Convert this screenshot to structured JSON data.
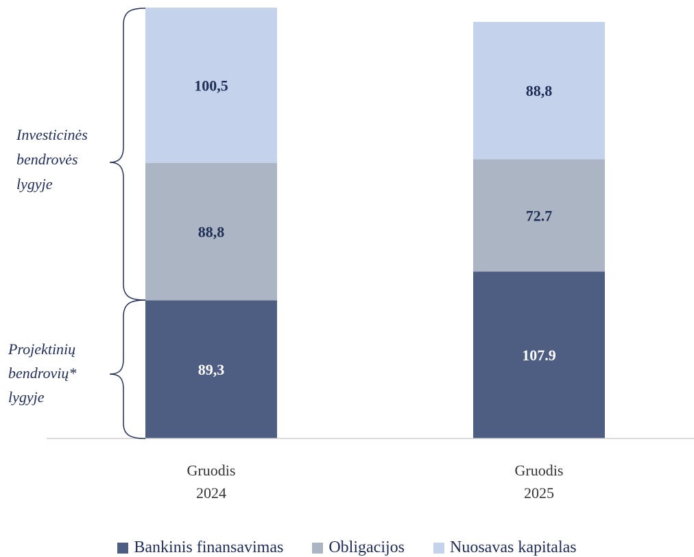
{
  "chart_data": {
    "type": "bar",
    "stacked": true,
    "categories": [
      {
        "line1": "Gruodis",
        "line2": "2024"
      },
      {
        "line1": "Gruodis",
        "line2": "2025"
      }
    ],
    "series": [
      {
        "name": "Bankinis finansavimas",
        "color": "#4d5e82",
        "label_color": "#ffffff",
        "values": [
          89.3,
          107.9
        ],
        "labels": [
          "89,3",
          "107.9"
        ]
      },
      {
        "name": "Obligacijos",
        "color": "#abb5c3",
        "label_color": "#1f2d56",
        "values": [
          88.8,
          72.7
        ],
        "labels": [
          "88,8",
          "72.7"
        ]
      },
      {
        "name": "Nuosavas kapitalas",
        "color": "#c5d2ec",
        "label_color": "#1f2d56",
        "values": [
          100.5,
          88.8
        ],
        "labels": [
          "100,5",
          "88,8"
        ]
      }
    ],
    "ylim": [
      0,
      280
    ],
    "legend_position": "bottom",
    "grid": false
  },
  "annotations": {
    "upper_bracket": [
      "Investicinės",
      "bendrovės",
      "lygyje"
    ],
    "lower_bracket": [
      "Projektinių",
      "bendrovių*",
      "lygyje"
    ]
  }
}
